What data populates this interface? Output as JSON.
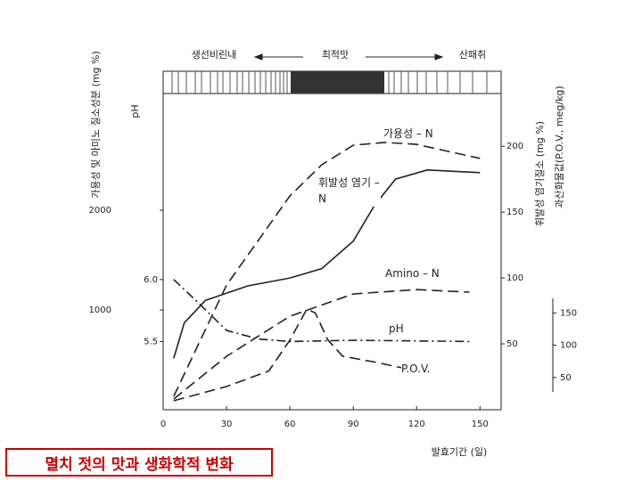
{
  "chart_data": {
    "type": "line",
    "scale_labels": [
      "생선비린내",
      "최적맛",
      "산패취"
    ],
    "xlabel": "발효기간 (일)",
    "ylabel": "가용성 및 아미노 질소성분 (mg %)",
    "phlabel": "pH",
    "y2label": "휘발성 염기질소 (mg %)",
    "y3label": "과산화물값(P.O.V., meg/kg)",
    "xlim": [
      0,
      160
    ],
    "xticks": [
      0,
      30,
      60,
      90,
      120,
      150
    ],
    "ylim": [
      0,
      3170
    ],
    "yticks": [
      1000,
      2000
    ],
    "phlim": [
      4.95,
      7.5
    ],
    "phticks": [
      5.5,
      {
        "value": 6,
        "label": "6.0"
      }
    ],
    "y2lim": [
      0,
      240
    ],
    "y2ticks": [
      50,
      100,
      150,
      200
    ],
    "y3lim": [
      0,
      490
    ],
    "y3ticks": [
      50,
      100,
      150
    ],
    "series": [
      {
        "name": "가용성 – N",
        "color": "#222",
        "style": "dashed",
        "axis": "y",
        "x": [
          5,
          30,
          60,
          75,
          90,
          105,
          120,
          135,
          150
        ],
        "values": [
          134,
          1250,
          2143,
          2455,
          2652,
          2680,
          2660,
          2590,
          2520
        ]
      },
      {
        "name": "휘발성 염기 – N",
        "color": "#222",
        "style": "solid",
        "axis": "y2",
        "x": [
          5,
          10,
          20,
          40,
          60,
          75,
          90,
          100,
          110,
          125,
          150
        ],
        "values": [
          39,
          66,
          83,
          94,
          100,
          107,
          128,
          155,
          175,
          182,
          180
        ]
      },
      {
        "name": "Amino – N",
        "color": "#222",
        "style": "dashed",
        "axis": "y",
        "x": [
          5,
          30,
          60,
          90,
          120,
          145
        ],
        "values": [
          107,
          536,
          938,
          1161,
          1205,
          1179
        ]
      },
      {
        "name": "pH",
        "color": "#222",
        "style": "dashdot",
        "axis": "ph",
        "x": [
          5,
          15,
          30,
          45,
          60,
          90,
          145
        ],
        "values": [
          6.0,
          5.84,
          5.59,
          5.52,
          5.5,
          5.51,
          5.5
        ]
      },
      {
        "name": "P.O.V.",
        "color": "#222",
        "style": "dashed",
        "axis": "y3",
        "x": [
          5,
          30,
          50,
          60,
          68,
          72,
          78,
          85,
          100,
          120
        ],
        "values": [
          14,
          36,
          60,
          108,
          156,
          150,
          108,
          83,
          74,
          60
        ]
      }
    ]
  },
  "caption": "멸치 젓의 맛과 생화학적 변화"
}
